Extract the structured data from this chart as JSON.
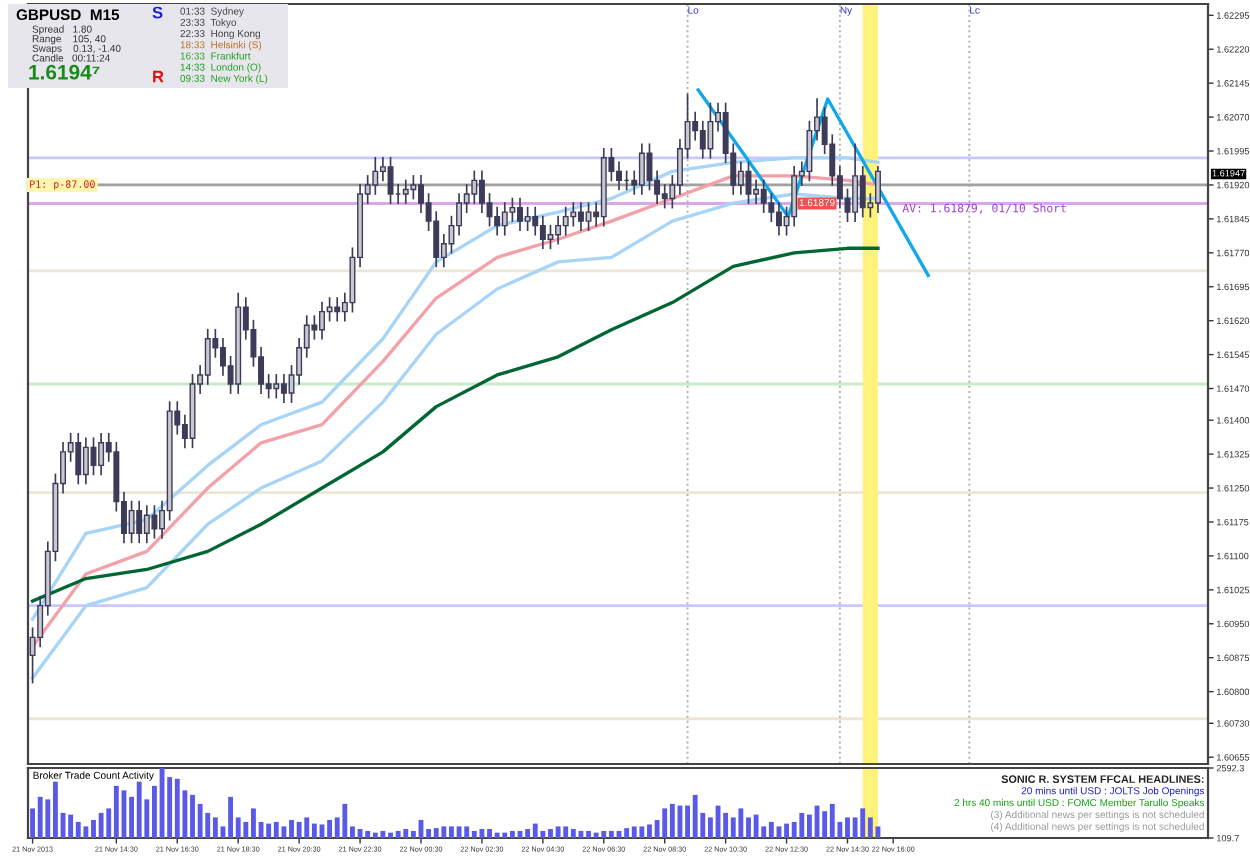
{
  "chart_data": [
    {
      "type": "candlestick",
      "title": "GBPUSD  M15",
      "x": [
        "2013-11-21T11:45",
        "2013-11-21T12:00",
        "2013-11-21T12:15",
        "2013-11-21T12:30",
        "2013-11-21T12:45",
        "2013-11-21T13:00",
        "2013-11-21T13:15",
        "2013-11-21T13:30",
        "2013-11-21T13:45",
        "2013-11-21T14:00",
        "2013-11-21T14:15",
        "2013-11-21T14:30",
        "2013-11-21T14:45",
        "2013-11-21T15:00",
        "2013-11-21T15:15",
        "2013-11-21T15:30",
        "2013-11-21T15:45",
        "2013-11-21T16:00",
        "2013-11-21T16:15",
        "2013-11-21T16:30",
        "2013-11-21T16:45",
        "2013-11-21T17:00",
        "2013-11-21T17:15",
        "2013-11-21T17:30",
        "2013-11-21T17:45",
        "2013-11-21T18:00",
        "2013-11-21T18:15",
        "2013-11-21T18:30",
        "2013-11-21T18:45",
        "2013-11-21T19:00",
        "2013-11-21T19:15",
        "2013-11-21T19:30",
        "2013-11-21T19:45",
        "2013-11-21T20:00",
        "2013-11-21T20:15",
        "2013-11-21T20:30",
        "2013-11-21T20:45",
        "2013-11-21T21:00",
        "2013-11-21T21:15",
        "2013-11-21T21:30",
        "2013-11-21T21:45",
        "2013-11-21T22:00",
        "2013-11-21T22:15",
        "2013-11-21T22:30",
        "2013-11-21T22:45",
        "2013-11-21T23:00",
        "2013-11-21T23:15",
        "2013-11-21T23:30",
        "2013-11-21T23:45",
        "2013-11-22T00:00",
        "2013-11-22T00:15",
        "2013-11-22T00:30",
        "2013-11-22T00:45",
        "2013-11-22T01:00",
        "2013-11-22T01:15",
        "2013-11-22T01:30",
        "2013-11-22T01:45",
        "2013-11-22T02:00",
        "2013-11-22T02:15",
        "2013-11-22T02:30",
        "2013-11-22T02:45",
        "2013-11-22T03:00",
        "2013-11-22T03:15",
        "2013-11-22T03:30",
        "2013-11-22T03:45",
        "2013-11-22T04:00",
        "2013-11-22T04:15",
        "2013-11-22T04:30",
        "2013-11-22T04:45",
        "2013-11-22T05:00",
        "2013-11-22T05:15",
        "2013-11-22T05:30",
        "2013-11-22T05:45",
        "2013-11-22T06:00",
        "2013-11-22T06:15",
        "2013-11-22T06:30",
        "2013-11-22T06:45",
        "2013-11-22T07:00",
        "2013-11-22T07:15",
        "2013-11-22T07:30",
        "2013-11-22T07:45",
        "2013-11-22T08:00",
        "2013-11-22T08:15",
        "2013-11-22T08:30",
        "2013-11-22T08:45",
        "2013-11-22T09:00",
        "2013-11-22T09:15",
        "2013-11-22T09:30",
        "2013-11-22T09:45",
        "2013-11-22T10:00",
        "2013-11-22T10:15",
        "2013-11-22T10:30",
        "2013-11-22T10:45",
        "2013-11-22T11:00",
        "2013-11-22T11:15",
        "2013-11-22T11:30",
        "2013-11-22T11:45",
        "2013-11-22T12:00",
        "2013-11-22T12:15",
        "2013-11-22T12:30",
        "2013-11-22T12:45",
        "2013-11-22T13:00",
        "2013-11-22T13:15",
        "2013-11-22T13:30",
        "2013-11-22T13:45",
        "2013-11-22T14:00",
        "2013-11-22T14:15",
        "2013-11-22T14:30",
        "2013-11-22T14:45",
        "2013-11-22T15:00",
        "2013-11-22T15:15",
        "2013-11-22T15:30"
      ],
      "ohlc": [
        [
          1.6088,
          1.6094,
          1.6082,
          1.6092
        ],
        [
          1.6092,
          1.6101,
          1.609,
          1.6099
        ],
        [
          1.6099,
          1.6113,
          1.6097,
          1.6111
        ],
        [
          1.6111,
          1.6128,
          1.6109,
          1.6126
        ],
        [
          1.6126,
          1.6135,
          1.6124,
          1.6133
        ],
        [
          1.6133,
          1.6137,
          1.6131,
          1.6135
        ],
        [
          1.6135,
          1.6137,
          1.6126,
          1.6128
        ],
        [
          1.6128,
          1.6136,
          1.6126,
          1.6134
        ],
        [
          1.6134,
          1.6136,
          1.6128,
          1.613
        ],
        [
          1.613,
          1.6137,
          1.6128,
          1.6135
        ],
        [
          1.6135,
          1.6137,
          1.6131,
          1.6133
        ],
        [
          1.6133,
          1.6135,
          1.612,
          1.6122
        ],
        [
          1.6122,
          1.6124,
          1.6113,
          1.6115
        ],
        [
          1.6115,
          1.6122,
          1.6113,
          1.612
        ],
        [
          1.612,
          1.6122,
          1.6113,
          1.6115
        ],
        [
          1.6115,
          1.6121,
          1.6113,
          1.6119
        ],
        [
          1.6119,
          1.6121,
          1.6114,
          1.6116
        ],
        [
          1.6116,
          1.6122,
          1.6114,
          1.612
        ],
        [
          1.612,
          1.6144,
          1.6118,
          1.6142
        ],
        [
          1.6142,
          1.6144,
          1.6137,
          1.6139
        ],
        [
          1.6139,
          1.6141,
          1.6134,
          1.6136
        ],
        [
          1.6136,
          1.615,
          1.6134,
          1.6148
        ],
        [
          1.6148,
          1.6152,
          1.6146,
          1.615
        ],
        [
          1.615,
          1.616,
          1.6148,
          1.6158
        ],
        [
          1.6158,
          1.616,
          1.6154,
          1.6156
        ],
        [
          1.6156,
          1.6158,
          1.615,
          1.6152
        ],
        [
          1.6152,
          1.6154,
          1.6146,
          1.6148
        ],
        [
          1.6148,
          1.6168,
          1.6146,
          1.6165
        ],
        [
          1.6165,
          1.6167,
          1.6158,
          1.616
        ],
        [
          1.616,
          1.6162,
          1.6152,
          1.6154
        ],
        [
          1.6154,
          1.6156,
          1.6146,
          1.6148
        ],
        [
          1.6148,
          1.615,
          1.6145,
          1.6147
        ],
        [
          1.6147,
          1.615,
          1.6145,
          1.6148
        ],
        [
          1.6148,
          1.615,
          1.6144,
          1.6146
        ],
        [
          1.6146,
          1.6152,
          1.6144,
          1.615
        ],
        [
          1.615,
          1.6158,
          1.6148,
          1.6156
        ],
        [
          1.6156,
          1.6163,
          1.6154,
          1.6161
        ],
        [
          1.6161,
          1.6163,
          1.6158,
          1.616
        ],
        [
          1.616,
          1.6166,
          1.6158,
          1.6164
        ],
        [
          1.6164,
          1.6167,
          1.6162,
          1.6165
        ],
        [
          1.6165,
          1.6167,
          1.6162,
          1.6164
        ],
        [
          1.6164,
          1.6168,
          1.6162,
          1.6166
        ],
        [
          1.6166,
          1.6178,
          1.6164,
          1.6176
        ],
        [
          1.6176,
          1.6192,
          1.6174,
          1.619
        ],
        [
          1.619,
          1.6194,
          1.6188,
          1.6192
        ],
        [
          1.6192,
          1.6198,
          1.619,
          1.6195
        ],
        [
          1.6195,
          1.6198,
          1.6193,
          1.6196
        ],
        [
          1.6196,
          1.6198,
          1.6188,
          1.619
        ],
        [
          1.619,
          1.6192,
          1.6188,
          1.619
        ],
        [
          1.619,
          1.6193,
          1.6188,
          1.6191
        ],
        [
          1.6191,
          1.6194,
          1.6189,
          1.6192
        ],
        [
          1.6192,
          1.6194,
          1.6186,
          1.6188
        ],
        [
          1.6188,
          1.619,
          1.6182,
          1.6184
        ],
        [
          1.6184,
          1.6186,
          1.6174,
          1.6176
        ],
        [
          1.6176,
          1.6181,
          1.6174,
          1.6179
        ],
        [
          1.6179,
          1.6185,
          1.6177,
          1.6183
        ],
        [
          1.6183,
          1.619,
          1.6181,
          1.6188
        ],
        [
          1.6188,
          1.6192,
          1.6186,
          1.619
        ],
        [
          1.619,
          1.6195,
          1.6188,
          1.6193
        ],
        [
          1.6193,
          1.6195,
          1.6186,
          1.6188
        ],
        [
          1.6188,
          1.619,
          1.6183,
          1.6185
        ],
        [
          1.6185,
          1.6187,
          1.6181,
          1.6183
        ],
        [
          1.6183,
          1.6188,
          1.6181,
          1.6186
        ],
        [
          1.6186,
          1.6189,
          1.6184,
          1.6187
        ],
        [
          1.6187,
          1.6189,
          1.6182,
          1.6184
        ],
        [
          1.6184,
          1.6187,
          1.6182,
          1.6185
        ],
        [
          1.6185,
          1.6187,
          1.6181,
          1.6183
        ],
        [
          1.6183,
          1.6185,
          1.6178,
          1.618
        ],
        [
          1.618,
          1.6183,
          1.6178,
          1.6181
        ],
        [
          1.6181,
          1.6185,
          1.6179,
          1.6183
        ],
        [
          1.6183,
          1.6187,
          1.6181,
          1.6185
        ],
        [
          1.6185,
          1.6188,
          1.6183,
          1.6186
        ],
        [
          1.6186,
          1.6188,
          1.6182,
          1.6184
        ],
        [
          1.6184,
          1.6188,
          1.6182,
          1.6186
        ],
        [
          1.6186,
          1.6188,
          1.6183,
          1.6185
        ],
        [
          1.6185,
          1.62,
          1.6183,
          1.6198
        ],
        [
          1.6198,
          1.62,
          1.6193,
          1.6195
        ],
        [
          1.6195,
          1.6197,
          1.6191,
          1.6193
        ],
        [
          1.6193,
          1.6195,
          1.6191,
          1.6193
        ],
        [
          1.6193,
          1.6195,
          1.619,
          1.6192
        ],
        [
          1.6192,
          1.6201,
          1.619,
          1.6199
        ],
        [
          1.6199,
          1.6201,
          1.6191,
          1.6193
        ],
        [
          1.6193,
          1.6195,
          1.6188,
          1.619
        ],
        [
          1.619,
          1.6192,
          1.6187,
          1.6189
        ],
        [
          1.6189,
          1.6194,
          1.6187,
          1.6192
        ],
        [
          1.6192,
          1.6202,
          1.619,
          1.62
        ],
        [
          1.62,
          1.6212,
          1.6198,
          1.6206
        ],
        [
          1.6206,
          1.6208,
          1.6202,
          1.6204
        ],
        [
          1.6204,
          1.6206,
          1.6198,
          1.62
        ],
        [
          1.62,
          1.621,
          1.6198,
          1.6206
        ],
        [
          1.6206,
          1.621,
          1.6204,
          1.6208
        ],
        [
          1.6208,
          1.621,
          1.6197,
          1.6199
        ],
        [
          1.6199,
          1.6201,
          1.619,
          1.6192
        ],
        [
          1.6192,
          1.6197,
          1.619,
          1.6195
        ],
        [
          1.6195,
          1.6197,
          1.6188,
          1.619
        ],
        [
          1.619,
          1.6193,
          1.6188,
          1.6191
        ],
        [
          1.6191,
          1.6193,
          1.6186,
          1.6188
        ],
        [
          1.6188,
          1.619,
          1.6184,
          1.6186
        ],
        [
          1.6186,
          1.6188,
          1.6181,
          1.6183
        ],
        [
          1.6183,
          1.6187,
          1.6181,
          1.6185
        ],
        [
          1.6185,
          1.6196,
          1.6183,
          1.6194
        ],
        [
          1.6194,
          1.6197,
          1.6192,
          1.6195
        ],
        [
          1.6195,
          1.6206,
          1.6193,
          1.6204
        ],
        [
          1.6204,
          1.6211,
          1.6202,
          1.6207
        ],
        [
          1.6207,
          1.6209,
          1.6199,
          1.6201
        ],
        [
          1.6201,
          1.6203,
          1.6192,
          1.6194
        ],
        [
          1.6194,
          1.6196,
          1.6187,
          1.6189
        ],
        [
          1.6189,
          1.6191,
          1.6184,
          1.6186
        ],
        [
          1.6186,
          1.6201,
          1.6184,
          1.6194
        ],
        [
          1.6194,
          1.6196,
          1.6185,
          1.6187
        ],
        [
          1.6187,
          1.619,
          1.6185,
          1.6188
        ],
        [
          1.6188,
          1.6196,
          1.6186,
          1.6195
        ]
      ],
      "series": [
        {
          "type": "line",
          "color": "#a8d4f8",
          "x": [
            "2013-11-21T11:45",
            "2013-11-21T13:30",
            "2013-11-21T15:30",
            "2013-11-21T17:30",
            "2013-11-21T19:15",
            "2013-11-21T21:15",
            "2013-11-21T23:15",
            "2013-11-22T01:00",
            "2013-11-22T03:00",
            "2013-11-22T05:00",
            "2013-11-22T06:45",
            "2013-11-22T08:45",
            "2013-11-22T10:45",
            "2013-11-22T12:45",
            "2013-11-22T14:30",
            "2013-11-22T15:30"
          ],
          "values": [
            1.6096,
            1.6115,
            1.6118,
            1.613,
            1.6139,
            1.6144,
            1.6158,
            1.6175,
            1.6183,
            1.6186,
            1.6189,
            1.6195,
            1.6197,
            1.6198,
            1.6198,
            1.6197
          ]
        },
        {
          "type": "line",
          "color": "#f4a0a8",
          "x": [
            "2013-11-21T11:45",
            "2013-11-21T13:30",
            "2013-11-21T15:30",
            "2013-11-21T17:30",
            "2013-11-21T19:15",
            "2013-11-21T21:15",
            "2013-11-21T23:15",
            "2013-11-22T01:00",
            "2013-11-22T03:00",
            "2013-11-22T05:00",
            "2013-11-22T06:45",
            "2013-11-22T08:45",
            "2013-11-22T10:45",
            "2013-11-22T12:45",
            "2013-11-22T14:30",
            "2013-11-22T15:30"
          ],
          "values": [
            1.609,
            1.6106,
            1.6111,
            1.6125,
            1.6135,
            1.6139,
            1.6153,
            1.6167,
            1.6176,
            1.618,
            1.6184,
            1.6189,
            1.6194,
            1.6194,
            1.6193,
            1.6192
          ]
        },
        {
          "type": "line",
          "color": "#a8d4f8",
          "x": [
            "2013-11-21T11:45",
            "2013-11-21T13:30",
            "2013-11-21T15:30",
            "2013-11-21T17:30",
            "2013-11-21T19:15",
            "2013-11-21T21:15",
            "2013-11-21T23:15",
            "2013-11-22T01:00",
            "2013-11-22T03:00",
            "2013-11-22T05:00",
            "2013-11-22T06:45",
            "2013-11-22T08:45",
            "2013-11-22T10:45",
            "2013-11-22T12:45",
            "2013-11-22T14:30",
            "2013-11-22T15:30"
          ],
          "values": [
            1.6083,
            1.6099,
            1.6103,
            1.6117,
            1.6125,
            1.6131,
            1.6144,
            1.6159,
            1.6169,
            1.6175,
            1.6176,
            1.6184,
            1.6188,
            1.619,
            1.6189,
            1.6189
          ]
        },
        {
          "type": "line",
          "color": "#006633",
          "x": [
            "2013-11-21T11:45",
            "2013-11-21T13:30",
            "2013-11-21T15:30",
            "2013-11-21T17:30",
            "2013-11-21T19:15",
            "2013-11-21T21:15",
            "2013-11-21T23:15",
            "2013-11-22T01:00",
            "2013-11-22T03:00",
            "2013-11-22T05:00",
            "2013-11-22T06:45",
            "2013-11-22T08:45",
            "2013-11-22T10:45",
            "2013-11-22T12:45",
            "2013-11-22T14:30",
            "2013-11-22T15:30"
          ],
          "values": [
            1.61,
            1.6105,
            1.6107,
            1.6111,
            1.6117,
            1.6125,
            1.6133,
            1.6143,
            1.615,
            1.6154,
            1.616,
            1.6166,
            1.6174,
            1.6177,
            1.6178,
            1.6178
          ]
        },
        {
          "type": "line",
          "color": "#10a8e8",
          "x": [
            "2013-11-22T09:36",
            "2013-11-22T12:33",
            "2013-11-22T13:51",
            "2013-11-22T17:09"
          ],
          "values": [
            1.6213,
            1.6185,
            1.6211,
            1.6172
          ]
        }
      ],
      "xlim": [
        "2013-11-21T11:36",
        "2013-11-23T02:20"
      ],
      "ylim": [
        1.6064,
        1.6232
      ],
      "tick_labels": "y",
      "yticks": [
        1.62295,
        {
          "value": 1.6222,
          "label": "1.62220"
        },
        1.62145,
        {
          "value": 1.6207,
          "label": "1.62070"
        },
        1.61995,
        {
          "value": 1.6192,
          "label": "1.61920"
        },
        1.61845,
        {
          "value": 1.6177,
          "label": "1.61770"
        },
        1.61695,
        {
          "value": 1.6162,
          "label": "1.61620"
        },
        1.61545,
        {
          "value": 1.6147,
          "label": "1.61470"
        },
        {
          "value": 1.614,
          "label": "1.61400"
        },
        1.61325,
        {
          "value": 1.6125,
          "label": "1.61250"
        },
        1.61175,
        {
          "value": 1.611,
          "label": "1.61100"
        },
        1.61025,
        {
          "value": 1.6095,
          "label": "1.60950"
        },
        1.60875,
        {
          "value": 1.608,
          "label": "1.60800"
        },
        {
          "value": 1.6073,
          "label": "1.60730"
        },
        1.60655
      ],
      "ref_lines": [
        {
          "axis": "y",
          "value": 1.6198,
          "label": null,
          "color": "#c8c8ff"
        },
        {
          "axis": "y",
          "value": 1.6192,
          "label": "P1: p-87.00",
          "color": "#a0a0a0"
        },
        {
          "axis": "y",
          "value": 1.61879,
          "label": null,
          "color": "#d8a8e8"
        },
        {
          "axis": "y",
          "value": 1.6173,
          "label": null,
          "color": "#ebe7d4"
        },
        {
          "axis": "y",
          "value": 1.6148,
          "label": null,
          "color": "#c8ecc8"
        },
        {
          "axis": "y",
          "value": 1.6124,
          "label": null,
          "color": "#ebe7d4"
        },
        {
          "axis": "y",
          "value": 1.6099,
          "label": null,
          "color": "#c8c8ff"
        },
        {
          "axis": "y",
          "value": 1.6074,
          "label": null,
          "color": "#ebe7d4"
        },
        {
          "axis": "x",
          "value": "2013-11-22T09:15",
          "label": "Lo",
          "color": "#b0b0b0",
          "line_style": "dotted"
        },
        {
          "axis": "x",
          "value": "2013-11-22T14:15",
          "label": "Ny",
          "color": "#b0b0b0",
          "line_style": "dotted"
        },
        {
          "axis": "x",
          "value": "2013-11-22T18:30",
          "label": "Lc",
          "color": "#b0b0b0",
          "line_style": "dotted"
        }
      ],
      "bands": [
        {
          "axis": "x",
          "from": "2013-11-22T15:00",
          "to": "2013-11-22T15:30",
          "label": null,
          "color": "#fff27a"
        }
      ],
      "annotations": [
        "Spread   1.80",
        "Range    105, 40",
        "Swaps    0.13, -1.40",
        "Candle   00:11:24",
        "1.6194⁷",
        "S",
        "R",
        "01:33  Sydney",
        "23:33  Tokyo",
        "22:33  Hong Kong",
        "18:33  Helsinki (S)",
        "16:33  Frankfurt",
        "14:33  London (O)",
        "09:33  New York (L)",
        "1.61947",
        {
          "text": "1.61879",
          "x": "2013-11-22T13:30",
          "y": 1.61879
        },
        {
          "text": "AV: 1.61879, 01/10 Short",
          "x": "2013-11-22T16:18",
          "y": 1.61879
        }
      ]
    },
    {
      "type": "bar",
      "title": "Broker Trade Count Activity",
      "color": "#5a5ae6",
      "x": [
        "2013-11-21T11:45",
        "2013-11-21T12:00",
        "2013-11-21T12:15",
        "2013-11-21T12:30",
        "2013-11-21T12:45",
        "2013-11-21T13:00",
        "2013-11-21T13:15",
        "2013-11-21T13:30",
        "2013-11-21T13:45",
        "2013-11-21T14:00",
        "2013-11-21T14:15",
        "2013-11-21T14:30",
        "2013-11-21T14:45",
        "2013-11-21T15:00",
        "2013-11-21T15:15",
        "2013-11-21T15:30",
        "2013-11-21T15:45",
        "2013-11-21T16:00",
        "2013-11-21T16:15",
        "2013-11-21T16:30",
        "2013-11-21T16:45",
        "2013-11-21T17:00",
        "2013-11-21T17:15",
        "2013-11-21T17:30",
        "2013-11-21T17:45",
        "2013-11-21T18:00",
        "2013-11-21T18:15",
        "2013-11-21T18:30",
        "2013-11-21T18:45",
        "2013-11-21T19:00",
        "2013-11-21T19:15",
        "2013-11-21T19:30",
        "2013-11-21T19:45",
        "2013-11-21T20:00",
        "2013-11-21T20:15",
        "2013-11-21T20:30",
        "2013-11-21T20:45",
        "2013-11-21T21:00",
        "2013-11-21T21:15",
        "2013-11-21T21:30",
        "2013-11-21T21:45",
        "2013-11-21T22:00",
        "2013-11-21T22:15",
        "2013-11-21T22:30",
        "2013-11-21T22:45",
        "2013-11-21T23:00",
        "2013-11-21T23:15",
        "2013-11-21T23:30",
        "2013-11-21T23:45",
        "2013-11-22T00:00",
        "2013-11-22T00:15",
        "2013-11-22T00:30",
        "2013-11-22T00:45",
        "2013-11-22T01:00",
        "2013-11-22T01:15",
        "2013-11-22T01:30",
        "2013-11-22T01:45",
        "2013-11-22T02:00",
        "2013-11-22T02:15",
        "2013-11-22T02:30",
        "2013-11-22T02:45",
        "2013-11-22T03:00",
        "2013-11-22T03:15",
        "2013-11-22T03:30",
        "2013-11-22T03:45",
        "2013-11-22T04:00",
        "2013-11-22T04:15",
        "2013-11-22T04:30",
        "2013-11-22T04:45",
        "2013-11-22T05:00",
        "2013-11-22T05:15",
        "2013-11-22T05:30",
        "2013-11-22T05:45",
        "2013-11-22T06:00",
        "2013-11-22T06:15",
        "2013-11-22T06:30",
        "2013-11-22T06:45",
        "2013-11-22T07:00",
        "2013-11-22T07:15",
        "2013-11-22T07:30",
        "2013-11-22T07:45",
        "2013-11-22T08:00",
        "2013-11-22T08:15",
        "2013-11-22T08:30",
        "2013-11-22T08:45",
        "2013-11-22T09:00",
        "2013-11-22T09:15",
        "2013-11-22T09:30",
        "2013-11-22T09:45",
        "2013-11-22T10:00",
        "2013-11-22T10:15",
        "2013-11-22T10:30",
        "2013-11-22T10:45",
        "2013-11-22T11:00",
        "2013-11-22T11:15",
        "2013-11-22T11:30",
        "2013-11-22T11:45",
        "2013-11-22T12:00",
        "2013-11-22T12:15",
        "2013-11-22T12:30",
        "2013-11-22T12:45",
        "2013-11-22T13:00",
        "2013-11-22T13:15",
        "2013-11-22T13:30",
        "2013-11-22T13:45",
        "2013-11-22T14:00",
        "2013-11-22T14:15",
        "2013-11-22T14:30",
        "2013-11-22T14:45",
        "2013-11-22T15:00",
        "2013-11-22T15:15",
        "2013-11-22T15:30"
      ],
      "values": [
        1160,
        1570,
        1480,
        2120,
        1000,
        940,
        680,
        520,
        750,
        1000,
        1160,
        1960,
        1800,
        1570,
        2120,
        1480,
        1960,
        2590,
        2270,
        2210,
        1800,
        1640,
        1320,
        1000,
        840,
        520,
        1570,
        840,
        680,
        1160,
        680,
        620,
        680,
        520,
        750,
        680,
        840,
        620,
        590,
        750,
        840,
        1320,
        520,
        430,
        360,
        300,
        360,
        300,
        360,
        430,
        360,
        750,
        430,
        460,
        520,
        520,
        520,
        520,
        360,
        430,
        430,
        300,
        300,
        360,
        360,
        430,
        620,
        360,
        430,
        520,
        520,
        430,
        360,
        360,
        300,
        360,
        360,
        360,
        460,
        520,
        520,
        590,
        750,
        1160,
        1320,
        1260,
        1260,
        1640,
        1000,
        840,
        1260,
        1000,
        840,
        1160,
        840,
        940,
        520,
        680,
        520,
        620,
        680,
        1000,
        940,
        1260,
        1060,
        1320,
        680,
        840,
        840,
        1160,
        840,
        520
      ],
      "xlim": [
        "2013-11-21T11:36",
        "2013-11-23T02:20"
      ],
      "ylim": [
        109.7,
        2592.3
      ],
      "yticks": [
        2592.3,
        109.7
      ],
      "xticks": [
        {
          "value": "2013-11-21T11:45",
          "label": "21 Nov 2013"
        },
        {
          "value": "2013-11-21T14:30",
          "label": "21 Nov 14:30"
        },
        {
          "value": "2013-11-21T16:30",
          "label": "21 Nov 16:30"
        },
        {
          "value": "2013-11-21T18:30",
          "label": "21 Nov 18:30"
        },
        {
          "value": "2013-11-21T20:30",
          "label": "21 Nov 20:30"
        },
        {
          "value": "2013-11-21T22:30",
          "label": "21 Nov 22:30"
        },
        {
          "value": "2013-11-22T00:30",
          "label": "22 Nov 00:30"
        },
        {
          "value": "2013-11-22T02:30",
          "label": "22 Nov 02:30"
        },
        {
          "value": "2013-11-22T04:30",
          "label": "22 Nov 04:30"
        },
        {
          "value": "2013-11-22T06:30",
          "label": "22 Nov 06:30"
        },
        {
          "value": "2013-11-22T08:30",
          "label": "22 Nov 08:30"
        },
        {
          "value": "2013-11-22T10:30",
          "label": "22 Nov 10:30"
        },
        {
          "value": "2013-11-22T12:30",
          "label": "22 Nov 12:30"
        },
        {
          "value": "2013-11-22T14:30",
          "label": "22 Nov 14:30"
        },
        {
          "value": "2013-11-22T16:00",
          "label": "22 Nov 16:00"
        }
      ],
      "bands": [
        {
          "axis": "x",
          "from": "2013-11-22T15:00",
          "to": "2013-11-22T15:30",
          "label": null,
          "color": "#fff27a"
        }
      ],
      "annotations": [
        "SONIC R. SYSTEM FFCAL HEADLINES:",
        "20 mins until USD : JOLTS Job Openings",
        "2 hrs 40 mins until USD : FOMC Member Tarullo Speaks",
        "(3) Additional news per settings is not scheduled",
        "(4) Additional news per settings is not scheduled"
      ]
    }
  ]
}
